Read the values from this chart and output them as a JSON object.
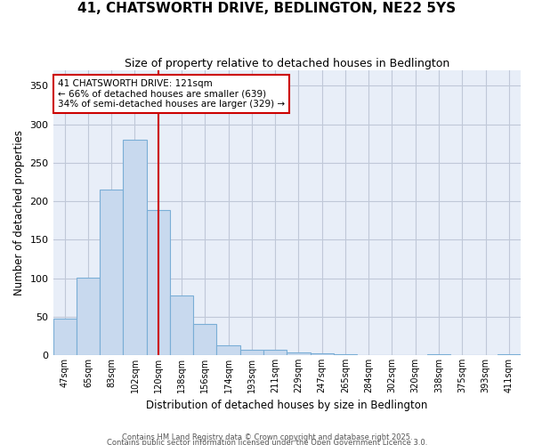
{
  "title": "41, CHATSWORTH DRIVE, BEDLINGTON, NE22 5YS",
  "subtitle": "Size of property relative to detached houses in Bedlington",
  "xlabel": "Distribution of detached houses by size in Bedlington",
  "ylabel": "Number of detached properties",
  "categories": [
    "47sqm",
    "65sqm",
    "83sqm",
    "102sqm",
    "120sqm",
    "138sqm",
    "156sqm",
    "174sqm",
    "193sqm",
    "211sqm",
    "229sqm",
    "247sqm",
    "265sqm",
    "284sqm",
    "302sqm",
    "320sqm",
    "338sqm",
    "375sqm",
    "393sqm",
    "411sqm"
  ],
  "values": [
    48,
    101,
    215,
    280,
    188,
    77,
    40,
    13,
    7,
    7,
    3,
    2,
    1,
    0,
    0,
    0,
    1,
    0,
    0,
    1
  ],
  "bar_color": "#c8d9ee",
  "bar_edge_color": "#7aaed6",
  "highlight_index": 4,
  "highlight_line_color": "#cc0000",
  "annotation_text": "41 CHATSWORTH DRIVE: 121sqm\n← 66% of detached houses are smaller (639)\n34% of semi-detached houses are larger (329) →",
  "annotation_box_color": "#ffffff",
  "annotation_box_edge_color": "#cc0000",
  "ylim": [
    0,
    370
  ],
  "yticks": [
    0,
    50,
    100,
    150,
    200,
    250,
    300,
    350
  ],
  "figure_bg": "#ffffff",
  "axes_bg": "#e8eef8",
  "grid_color": "#c0c8d8",
  "footer_line1": "Contains HM Land Registry data © Crown copyright and database right 2025.",
  "footer_line2": "Contains public sector information licensed under the Open Government Licence 3.0."
}
